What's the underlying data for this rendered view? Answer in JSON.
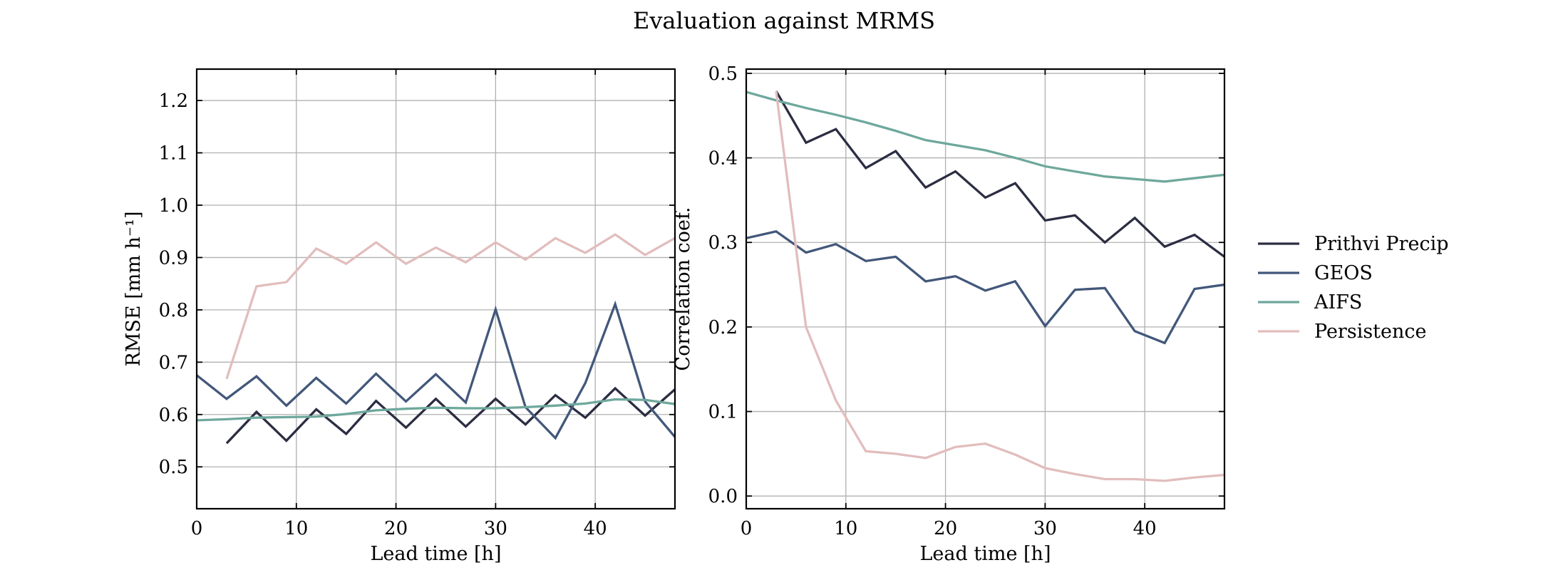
{
  "figure_title": "Evaluation against MRMS",
  "series_styles": [
    {
      "name": "Prithvi Precip",
      "color": "#2b2d42"
    },
    {
      "name": "GEOS",
      "color": "#42577a"
    },
    {
      "name": "AIFS",
      "color": "#6ea89c"
    },
    {
      "name": "Persistence",
      "color": "#e2bdbd"
    }
  ],
  "legend": {
    "placement": "right",
    "entries": [
      "Prithvi Precip",
      "GEOS",
      "AIFS",
      "Persistence"
    ]
  },
  "chart_data": [
    {
      "type": "line",
      "title": "",
      "xlabel": "Lead time [h]",
      "ylabel": "RMSE [mm h⁻¹]",
      "xlim": [
        0,
        48
      ],
      "ylim": [
        0.42,
        1.26
      ],
      "xticks": [
        0,
        10,
        20,
        30,
        40
      ],
      "yticks": [
        0.5,
        0.6,
        0.7,
        0.8,
        0.9,
        1.0,
        1.1,
        1.2
      ],
      "ytick_labels": [
        "0.5",
        "0.6",
        "0.7",
        "0.8",
        "0.9",
        "1.0",
        "1.1",
        "1.2"
      ],
      "grid": true,
      "series": [
        {
          "name": "Prithvi Precip",
          "x": [
            3,
            6,
            9,
            12,
            15,
            18,
            21,
            24,
            27,
            30,
            33,
            36,
            39,
            42,
            45,
            48
          ],
          "values": [
            0.545,
            0.605,
            0.55,
            0.61,
            0.563,
            0.626,
            0.575,
            0.63,
            0.577,
            0.63,
            0.581,
            0.637,
            0.594,
            0.65,
            0.598,
            0.648
          ]
        },
        {
          "name": "GEOS",
          "x": [
            0,
            3,
            6,
            9,
            12,
            15,
            18,
            21,
            24,
            27,
            30,
            33,
            36,
            39,
            42,
            45,
            48
          ],
          "values": [
            0.675,
            0.63,
            0.673,
            0.617,
            0.67,
            0.621,
            0.678,
            0.625,
            0.677,
            0.623,
            0.801,
            0.614,
            0.555,
            0.66,
            0.811,
            0.625,
            0.557
          ]
        },
        {
          "name": "AIFS",
          "x": [
            0,
            3,
            6,
            9,
            12,
            15,
            18,
            21,
            24,
            27,
            30,
            33,
            36,
            39,
            42,
            45,
            48
          ],
          "values": [
            0.589,
            0.591,
            0.594,
            0.595,
            0.596,
            0.601,
            0.608,
            0.611,
            0.613,
            0.612,
            0.612,
            0.614,
            0.617,
            0.621,
            0.629,
            0.628,
            0.62
          ]
        },
        {
          "name": "Persistence",
          "x": [
            3,
            6,
            9,
            12,
            15,
            18,
            21,
            24,
            27,
            30,
            33,
            36,
            39,
            42,
            45,
            48
          ],
          "values": [
            0.668,
            0.845,
            0.853,
            0.917,
            0.888,
            0.929,
            0.888,
            0.919,
            0.891,
            0.929,
            0.896,
            0.937,
            0.909,
            0.944,
            0.905,
            0.937
          ]
        }
      ]
    },
    {
      "type": "line",
      "title": "",
      "xlabel": "Lead time [h]",
      "ylabel": "Correlation coef.",
      "xlim": [
        0,
        48
      ],
      "ylim": [
        -0.015,
        0.505
      ],
      "xticks": [
        0,
        10,
        20,
        30,
        40
      ],
      "yticks": [
        0.0,
        0.1,
        0.2,
        0.3,
        0.4,
        0.5
      ],
      "ytick_labels": [
        "0.0",
        "0.1",
        "0.2",
        "0.3",
        "0.4",
        "0.5"
      ],
      "grid": true,
      "series": [
        {
          "name": "Prithvi Precip",
          "x": [
            3,
            6,
            9,
            12,
            15,
            18,
            21,
            24,
            27,
            30,
            33,
            36,
            39,
            42,
            45,
            48
          ],
          "values": [
            0.479,
            0.418,
            0.434,
            0.388,
            0.408,
            0.365,
            0.384,
            0.353,
            0.37,
            0.326,
            0.332,
            0.3,
            0.329,
            0.295,
            0.309,
            0.283
          ]
        },
        {
          "name": "GEOS",
          "x": [
            0,
            3,
            6,
            9,
            12,
            15,
            18,
            21,
            24,
            27,
            30,
            33,
            36,
            39,
            42,
            45,
            48
          ],
          "values": [
            0.305,
            0.313,
            0.288,
            0.298,
            0.278,
            0.283,
            0.254,
            0.26,
            0.243,
            0.254,
            0.201,
            0.244,
            0.246,
            0.195,
            0.181,
            0.245,
            0.25
          ]
        },
        {
          "name": "AIFS",
          "x": [
            0,
            3,
            6,
            9,
            12,
            15,
            18,
            21,
            24,
            27,
            30,
            33,
            36,
            39,
            42,
            45,
            48
          ],
          "values": [
            0.478,
            0.468,
            0.459,
            0.451,
            0.442,
            0.432,
            0.421,
            0.415,
            0.409,
            0.4,
            0.39,
            0.384,
            0.378,
            0.375,
            0.372,
            0.376,
            0.38
          ]
        },
        {
          "name": "Persistence",
          "x": [
            3,
            6,
            9,
            12,
            15,
            18,
            21,
            24,
            27,
            30,
            33,
            36,
            39,
            42,
            45,
            48
          ],
          "values": [
            0.479,
            0.2,
            0.113,
            0.053,
            0.05,
            0.045,
            0.058,
            0.062,
            0.049,
            0.033,
            0.026,
            0.02,
            0.02,
            0.018,
            0.022,
            0.025
          ]
        }
      ]
    }
  ]
}
